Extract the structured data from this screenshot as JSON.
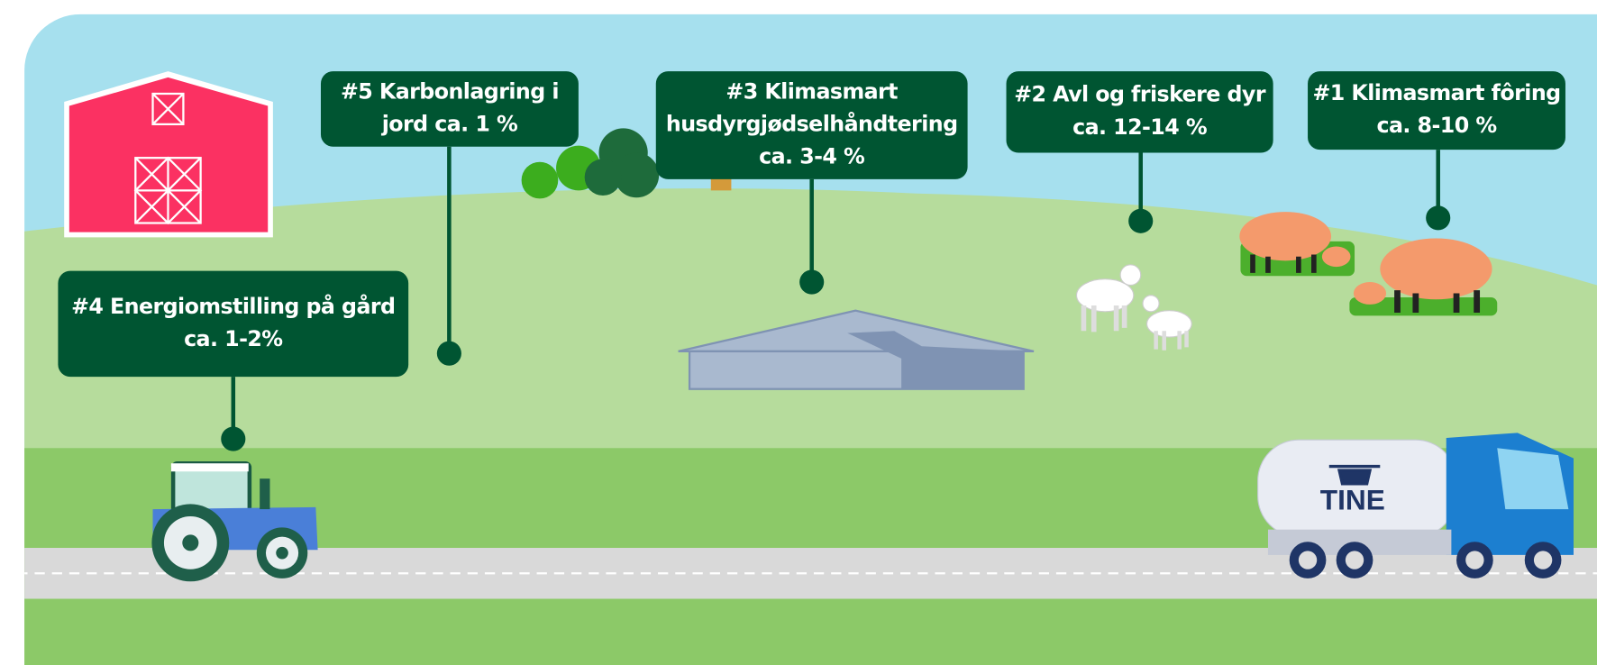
{
  "labels": [
    {
      "lines": [
        "#5 Karbonlagring i",
        "jord ca. 1 %"
      ]
    },
    {
      "lines": [
        "#3 Klimasmart",
        "husdyrgjødselhåndtering",
        "ca. 3-4 %"
      ]
    },
    {
      "lines": [
        "#2 Avl og friskere dyr",
        "ca. 12-14 %"
      ]
    },
    {
      "lines": [
        "#1 Klimasmart fôring",
        "ca. 8-10 %"
      ]
    },
    {
      "lines": [
        "#4 Energiomstilling på gård",
        "ca. 1-2%"
      ]
    }
  ],
  "truck": {
    "brand": "TINE"
  }
}
